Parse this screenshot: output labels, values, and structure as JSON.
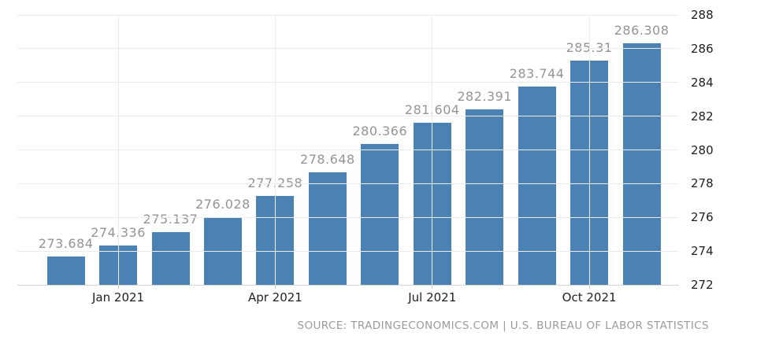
{
  "chart_data": {
    "type": "bar",
    "title": "",
    "xlabel": "",
    "ylabel": "",
    "values": [
      273.684,
      274.336,
      275.137,
      276.028,
      277.258,
      278.648,
      280.366,
      281.604,
      282.391,
      283.744,
      285.31,
      286.308
    ],
    "bar_labels": [
      "273.684",
      "274.336",
      "275.137",
      "276.028",
      "277.258",
      "278.648",
      "280.366",
      "281.604",
      "282.391",
      "283.744",
      "285.31",
      "286.308"
    ],
    "x_ticks": [
      {
        "bar_index": 1,
        "label": "Jan 2021"
      },
      {
        "bar_index": 4,
        "label": "Apr 2021"
      },
      {
        "bar_index": 7,
        "label": "Jul 2021"
      },
      {
        "bar_index": 10,
        "label": "Oct 2021"
      }
    ],
    "y_ticks": [
      272,
      274,
      276,
      278,
      280,
      282,
      284,
      286,
      288
    ],
    "ylim": [
      272,
      288
    ],
    "grid": true,
    "legend": "none",
    "colors": {
      "bar": "#4a82b4",
      "value_label": "#949494",
      "axis_label": "#222222",
      "gridline": "#ececec"
    }
  },
  "footer": {
    "source_text": "SOURCE: TRADINGECONOMICS.COM | U.S. BUREAU OF LABOR STATISTICS"
  }
}
